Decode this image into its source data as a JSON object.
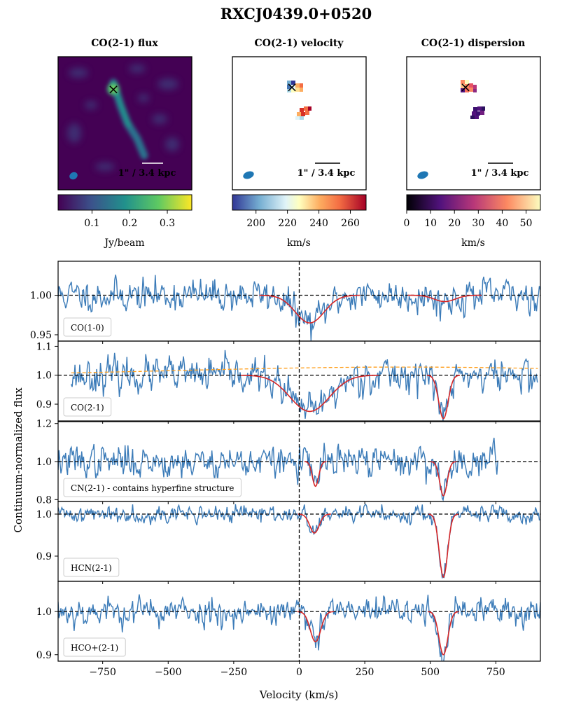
{
  "title": "RXCJ0439.0+0520",
  "maps": [
    {
      "title": "CO(2-1) flux",
      "colorbar": {
        "label": "Jy/beam",
        "ticks": [
          "0.1",
          "0.2",
          "0.3"
        ],
        "tick_values": [
          0.1,
          0.2,
          0.3
        ],
        "range": [
          0.01,
          0.365
        ],
        "colormap": "viridis"
      },
      "scalebar_label": "1\" / 3.4 kpc",
      "marker": {
        "symbol": "×",
        "color": "#e03010"
      }
    },
    {
      "title": "CO(2-1) velocity",
      "colorbar": {
        "label": "km/s",
        "ticks": [
          "200",
          "220",
          "240",
          "260"
        ],
        "tick_values": [
          200,
          220,
          240,
          260
        ],
        "range": [
          185,
          270
        ],
        "colormap": "RdYlBu_r"
      },
      "scalebar_label": "1\" / 3.4 kpc",
      "marker": {
        "symbol": "×",
        "color": "#000000"
      }
    },
    {
      "title": "CO(2-1) dispersion",
      "colorbar": {
        "label": "km/s",
        "ticks": [
          "0",
          "10",
          "20",
          "30",
          "40",
          "50"
        ],
        "tick_values": [
          0,
          10,
          20,
          30,
          40,
          50
        ],
        "range": [
          0,
          56
        ],
        "colormap": "magma"
      },
      "scalebar_label": "1\" / 3.4 kpc",
      "marker": {
        "symbol": "×",
        "color": "#000000"
      }
    }
  ],
  "spectra": {
    "ylabel": "Continuum-normalized flux",
    "xlabel": "Velocity (km/s)",
    "xlim": [
      -920,
      920
    ],
    "xticks": [
      "−750",
      "−500",
      "−250",
      "0",
      "250",
      "500",
      "750"
    ],
    "xtick_values": [
      -750,
      -500,
      -250,
      0,
      250,
      500,
      750
    ],
    "colors": {
      "data": "#3b7bb8",
      "fit": "#d62728",
      "continuum": "#ff9f1c"
    },
    "panels": [
      {
        "label": "CO(1-0)",
        "ylim": [
          0.942,
          1.043
        ],
        "yticks": [
          "0.95",
          "1.00"
        ],
        "ytick_values": [
          0.95,
          1.0
        ],
        "noise": 0.012,
        "data_range": [
          -920,
          920
        ],
        "seed": 11,
        "components": [
          {
            "center": 40,
            "sigma": 55,
            "depth": 0.035
          },
          {
            "center": 555,
            "sigma": 40,
            "depth": 0.008
          }
        ]
      },
      {
        "label": "CO(2-1)",
        "ylim": [
          0.842,
          1.118
        ],
        "yticks": [
          "0.9",
          "1.0",
          "1.1"
        ],
        "ytick_values": [
          0.9,
          1.0,
          1.1
        ],
        "noise": 0.035,
        "data_range": [
          -870,
          910
        ],
        "seed": 23,
        "components": [
          {
            "center": 40,
            "sigma": 75,
            "depth": 0.125
          },
          {
            "center": 550,
            "sigma": 18,
            "depth": 0.15
          }
        ],
        "continuum_curve": {
          "center": 400,
          "width": 900,
          "height": 0.032
        }
      },
      {
        "label": "CN(2-1) - contains hyperfine structure",
        "ylim": [
          0.79,
          1.21
        ],
        "yticks": [
          "0.8",
          "1.0",
          "1.2"
        ],
        "ytick_values": [
          0.8,
          1.0,
          1.2
        ],
        "noise": 0.05,
        "data_range": [
          -920,
          760
        ],
        "seed": 37,
        "components": [
          {
            "center": 62,
            "sigma": 12,
            "depth": 0.13
          },
          {
            "center": 550,
            "sigma": 14,
            "depth": 0.18
          }
        ]
      },
      {
        "label": "HCN(2-1)",
        "ylim": [
          0.84,
          1.03
        ],
        "yticks": [
          "0.9",
          "1.0"
        ],
        "ytick_values": [
          0.9,
          1.0
        ],
        "noise": 0.012,
        "data_range": [
          -920,
          920
        ],
        "seed": 41,
        "components": [
          {
            "center": 58,
            "sigma": 18,
            "depth": 0.045
          },
          {
            "center": 550,
            "sigma": 16,
            "depth": 0.15
          }
        ]
      },
      {
        "label": "HCO+(2-1)",
        "ylim": [
          0.885,
          1.07
        ],
        "yticks": [
          "0.9",
          "1.0"
        ],
        "ytick_values": [
          0.9,
          1.0
        ],
        "noise": 0.02,
        "data_range": [
          -920,
          920
        ],
        "seed": 53,
        "components": [
          {
            "center": 62,
            "sigma": 20,
            "depth": 0.07
          },
          {
            "center": 550,
            "sigma": 17,
            "depth": 0.1
          }
        ]
      }
    ]
  }
}
